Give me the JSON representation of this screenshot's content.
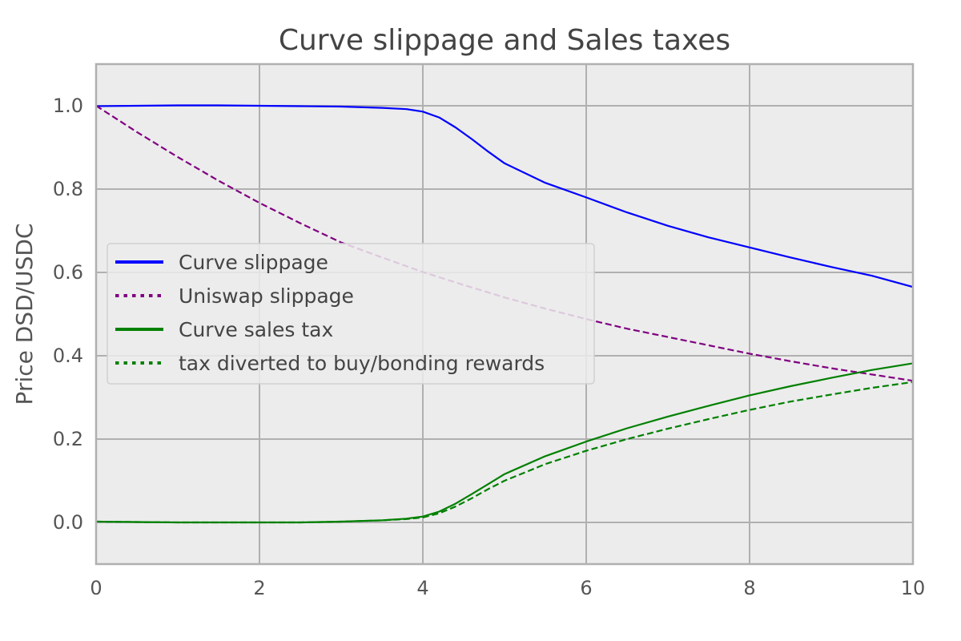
{
  "chart_data": {
    "type": "line",
    "title": "Curve slippage and Sales taxes",
    "xlabel": "",
    "ylabel": "Price DSD/USDC",
    "xlim": [
      0,
      10
    ],
    "ylim": [
      -0.1,
      1.1
    ],
    "xticks": [
      0,
      2,
      4,
      6,
      8,
      10
    ],
    "yticks": [
      0.0,
      0.2,
      0.4,
      0.6,
      0.8,
      1.0
    ],
    "grid": true,
    "legend_position": "center-left",
    "colors": {
      "plot_background": "#ececec",
      "grid": "#b0b0b0"
    },
    "series": [
      {
        "name": "Curve slippage",
        "color": "#0000ff",
        "style": "solid",
        "legend_style": "solid",
        "x": [
          0,
          0.5,
          1,
          1.5,
          2,
          2.5,
          3,
          3.5,
          3.8,
          4,
          4.2,
          4.4,
          4.6,
          4.8,
          5,
          5.5,
          6,
          6.5,
          7,
          7.5,
          8,
          8.5,
          9,
          9.5,
          10
        ],
        "y": [
          0.999,
          1.0,
          1.001,
          1.001,
          1.0,
          0.999,
          0.998,
          0.995,
          0.992,
          0.986,
          0.972,
          0.948,
          0.92,
          0.89,
          0.862,
          0.815,
          0.78,
          0.744,
          0.712,
          0.684,
          0.66,
          0.636,
          0.613,
          0.592,
          0.565
        ]
      },
      {
        "name": "Uniswap slippage",
        "color": "#800080",
        "style": "dashed",
        "legend_style": "dotted",
        "x": [
          0,
          0.5,
          1,
          1.5,
          2,
          2.5,
          3,
          3.5,
          4,
          4.5,
          5,
          5.5,
          6,
          6.5,
          7,
          7.5,
          8,
          8.5,
          9,
          9.5,
          10
        ],
        "y": [
          1.0,
          0.937,
          0.877,
          0.82,
          0.767,
          0.718,
          0.672,
          0.636,
          0.601,
          0.57,
          0.54,
          0.513,
          0.488,
          0.465,
          0.445,
          0.425,
          0.405,
          0.387,
          0.37,
          0.355,
          0.34
        ]
      },
      {
        "name": "Curve sales tax",
        "color": "#008000",
        "style": "solid",
        "legend_style": "solid",
        "x": [
          0,
          0.5,
          1,
          1.5,
          2,
          2.5,
          3,
          3.5,
          3.8,
          4,
          4.2,
          4.4,
          4.6,
          4.8,
          5,
          5.5,
          6,
          6.5,
          7,
          7.5,
          8,
          8.5,
          9,
          9.5,
          10
        ],
        "y": [
          0.002,
          0.001,
          0.0,
          0.0,
          0.0,
          0.0,
          0.002,
          0.005,
          0.009,
          0.014,
          0.026,
          0.045,
          0.068,
          0.092,
          0.116,
          0.159,
          0.194,
          0.226,
          0.254,
          0.28,
          0.305,
          0.327,
          0.347,
          0.366,
          0.382
        ]
      },
      {
        "name": "tax diverted to buy/bonding rewards",
        "color": "#008000",
        "style": "dashed",
        "legend_style": "dotted",
        "x": [
          0,
          0.5,
          1,
          1.5,
          2,
          2.5,
          3,
          3.5,
          3.8,
          4,
          4.2,
          4.4,
          4.6,
          4.8,
          5,
          5.5,
          6,
          6.5,
          7,
          7.5,
          8,
          8.5,
          9,
          9.5,
          10
        ],
        "y": [
          0.002,
          0.001,
          0.0,
          0.0,
          0.0,
          0.0,
          0.002,
          0.005,
          0.008,
          0.012,
          0.022,
          0.038,
          0.058,
          0.08,
          0.1,
          0.14,
          0.172,
          0.2,
          0.225,
          0.248,
          0.27,
          0.29,
          0.307,
          0.323,
          0.337
        ]
      }
    ]
  }
}
